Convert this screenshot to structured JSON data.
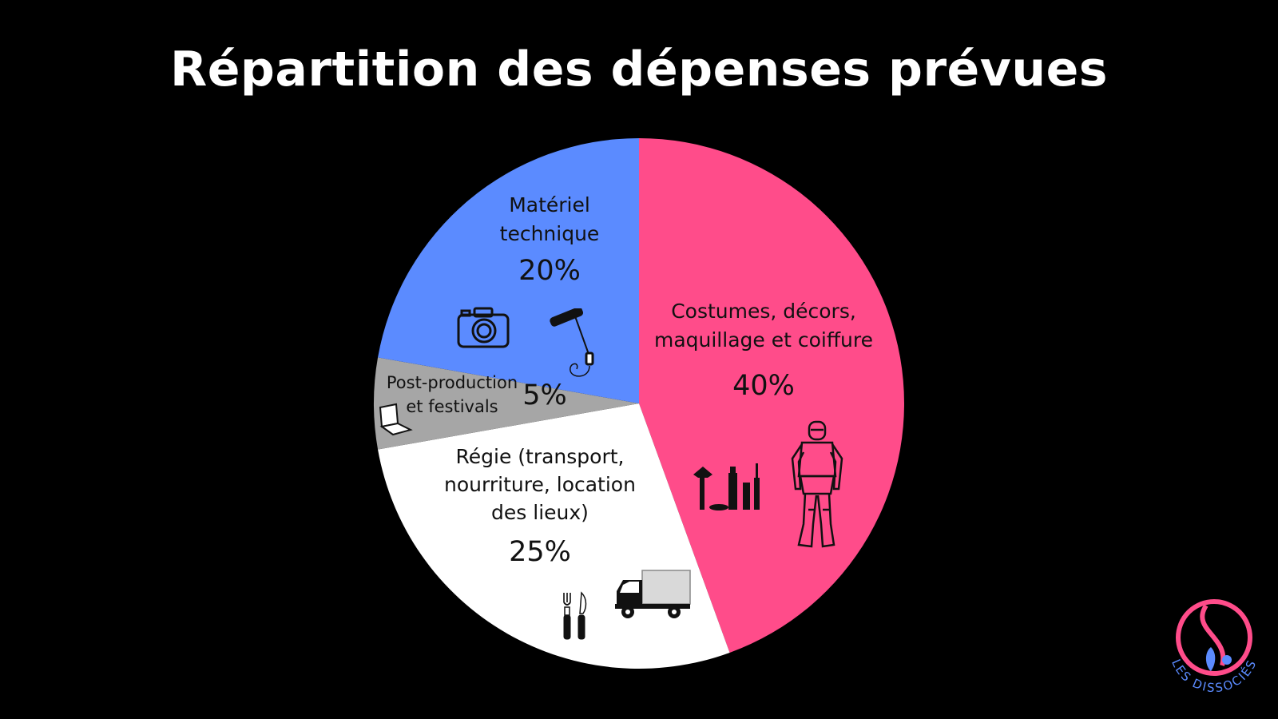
{
  "title": "Répartition des dépenses prévues",
  "chart_data": {
    "type": "pie",
    "title": "Répartition des dépenses prévues",
    "start_angle_deg": 0,
    "direction": "clockwise",
    "slices": [
      {
        "label_lines": [
          "Costumes, décors,",
          "maquillage et coiffure"
        ],
        "value": 40,
        "value_label": "40%",
        "color": "#ff4c8a",
        "icons": [
          "makeup-icon",
          "knight-armor-icon"
        ]
      },
      {
        "label_lines": [
          "Régie (transport,",
          "nourriture, location",
          "des lieux)"
        ],
        "value": 25,
        "value_label": "25%",
        "color": "#ffffff",
        "icons": [
          "cutlery-icon",
          "truck-icon"
        ]
      },
      {
        "label_lines": [
          "Post-production",
          "et festivals"
        ],
        "value": 5,
        "value_label": "5%",
        "color": "#a6a6a6",
        "icons": [
          "laptop-icon"
        ]
      },
      {
        "label_lines": [
          "Matériel",
          "technique"
        ],
        "value": 20,
        "value_label": "20%",
        "color": "#5b8bff",
        "icons": [
          "camera-icon",
          "boom-microphone-icon"
        ]
      }
    ]
  },
  "logo": {
    "text": "LES DISSOCIÉS",
    "ring_color": "#ff4c8a",
    "text_color": "#5b8bff"
  }
}
